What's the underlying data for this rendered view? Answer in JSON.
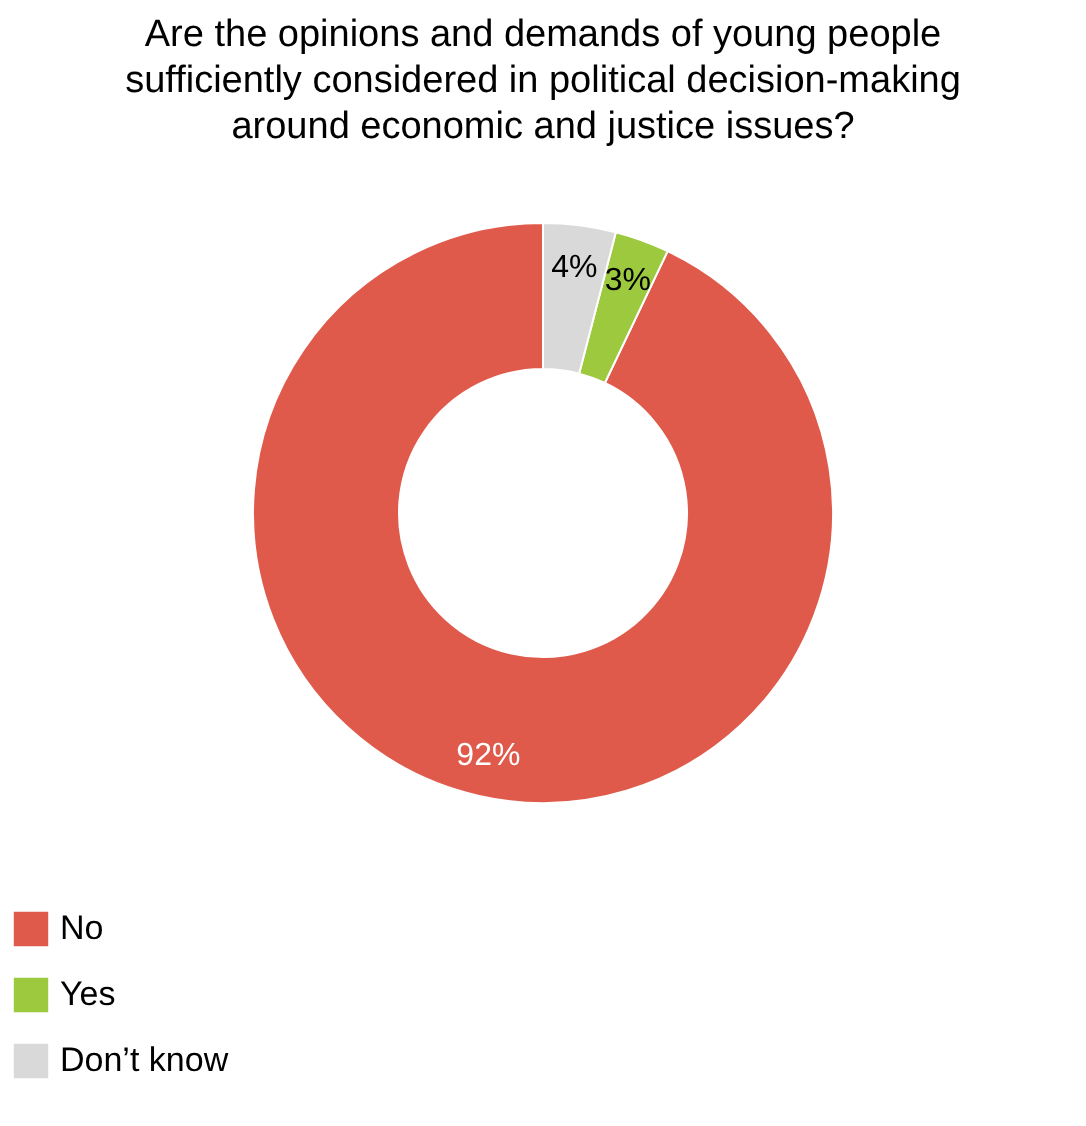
{
  "chart_data": {
    "type": "donut",
    "title": "Are the opinions and demands of young people sufficiently considered in political decision-making around economic and justice issues?",
    "categories": [
      "No",
      "Yes",
      "Don’t know"
    ],
    "values": [
      92,
      3,
      4
    ],
    "colors": [
      "#e05a4b",
      "#9dc93f",
      "#d9d9d9"
    ],
    "value_labels": [
      "92%",
      "3%",
      "4%"
    ],
    "legend": "bottom"
  }
}
